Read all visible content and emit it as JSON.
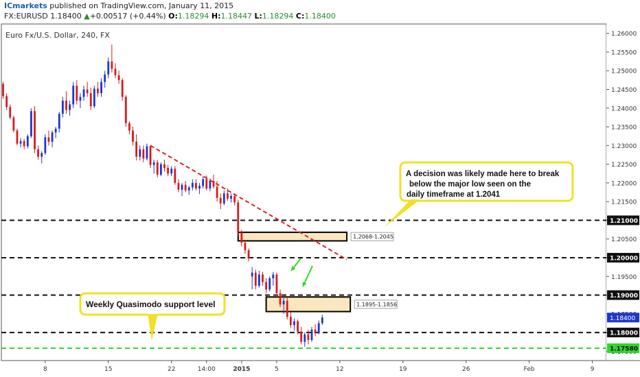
{
  "header": {
    "publisher": "ICmarkets",
    "published_text": "published on TradingView.com, January 11, 2015",
    "symbol": "FX:EURUSD",
    "last": "1.18400",
    "change": "+0.00517 (+0.44%)",
    "open_label": "O:",
    "open": "1.18294",
    "high_label": "H:",
    "high": "1.18447",
    "low_label": "L:",
    "low": "1.18294",
    "close_label": "C:",
    "close": "1.18400",
    "up_arrow": "▲"
  },
  "chart_title": "Euro Fx/U.S. Dollar, 240, FX",
  "chart_data": {
    "type": "candlestick",
    "title": "Euro Fx/U.S. Dollar, 240, FX",
    "y_axis_ticks": [
      "1.26000",
      "1.25500",
      "1.25000",
      "1.24500",
      "1.24000",
      "1.23500",
      "1.23000",
      "1.22500",
      "1.22000",
      "1.21500",
      "1.21000",
      "1.20500",
      "1.20000",
      "1.19500",
      "1.19000",
      "1.18500",
      "1.18000",
      "1.17500"
    ],
    "ylim": [
      1.1725,
      1.2625
    ],
    "x_axis_ticks": [
      {
        "label": "8",
        "idx": 12
      },
      {
        "label": "15",
        "idx": 30
      },
      {
        "label": "22",
        "idx": 48
      },
      {
        "label": "14:00",
        "idx": 58
      },
      {
        "label": "2015",
        "idx": 68
      },
      {
        "label": "5",
        "idx": 78
      },
      {
        "label": "12",
        "idx": 96
      },
      {
        "label": "19",
        "idx": 114
      },
      {
        "label": "26",
        "idx": 132
      },
      {
        "label": "Feb",
        "idx": 150
      },
      {
        "label": "9",
        "idx": 168
      }
    ],
    "x_index_range": [
      -0.5,
      172
    ],
    "candles": [
      [
        1.2465,
        1.247,
        1.2425,
        1.2432
      ],
      [
        1.2432,
        1.244,
        1.2395,
        1.2403
      ],
      [
        1.2403,
        1.241,
        1.237,
        1.2375
      ],
      [
        1.2375,
        1.238,
        1.2335,
        1.234
      ],
      [
        1.234,
        1.2345,
        1.23,
        1.2305
      ],
      [
        1.2305,
        1.232,
        1.2295,
        1.2312
      ],
      [
        1.2312,
        1.2318,
        1.229,
        1.2298
      ],
      [
        1.2298,
        1.233,
        1.2292,
        1.2325
      ],
      [
        1.2325,
        1.24,
        1.232,
        1.2392
      ],
      [
        1.2392,
        1.2405,
        1.228,
        1.229
      ],
      [
        1.229,
        1.23,
        1.2262,
        1.227
      ],
      [
        1.227,
        1.2285,
        1.2252,
        1.228
      ],
      [
        1.228,
        1.233,
        1.2275,
        1.2322
      ],
      [
        1.2322,
        1.234,
        1.23,
        1.231
      ],
      [
        1.231,
        1.234,
        1.2295,
        1.2335
      ],
      [
        1.2335,
        1.235,
        1.232,
        1.2345
      ],
      [
        1.2345,
        1.239,
        1.2335,
        1.2385
      ],
      [
        1.2385,
        1.243,
        1.2375,
        1.242
      ],
      [
        1.242,
        1.2445,
        1.2385,
        1.2395
      ],
      [
        1.2395,
        1.242,
        1.238,
        1.241
      ],
      [
        1.241,
        1.247,
        1.24,
        1.246
      ],
      [
        1.246,
        1.2475,
        1.241,
        1.242
      ],
      [
        1.242,
        1.244,
        1.24,
        1.243
      ],
      [
        1.243,
        1.246,
        1.242,
        1.245
      ],
      [
        1.245,
        1.247,
        1.243,
        1.244
      ],
      [
        1.244,
        1.2455,
        1.2395,
        1.2405
      ],
      [
        1.2405,
        1.246,
        1.24,
        1.2452
      ],
      [
        1.2452,
        1.247,
        1.243,
        1.244
      ],
      [
        1.244,
        1.248,
        1.243,
        1.247
      ],
      [
        1.247,
        1.25,
        1.2455,
        1.249
      ],
      [
        1.249,
        1.2535,
        1.248,
        1.2525
      ],
      [
        1.2525,
        1.257,
        1.2495,
        1.2505
      ],
      [
        1.2505,
        1.252,
        1.248,
        1.2488
      ],
      [
        1.2488,
        1.25,
        1.2465,
        1.2475
      ],
      [
        1.2475,
        1.248,
        1.242,
        1.243
      ],
      [
        1.243,
        1.2435,
        1.235,
        1.236
      ],
      [
        1.236,
        1.2365,
        1.233,
        1.234
      ],
      [
        1.234,
        1.235,
        1.23,
        1.231
      ],
      [
        1.231,
        1.233,
        1.226,
        1.227
      ],
      [
        1.227,
        1.23,
        1.226,
        1.229
      ],
      [
        1.229,
        1.23,
        1.2255,
        1.2265
      ],
      [
        1.2265,
        1.2305,
        1.226,
        1.2298
      ],
      [
        1.2298,
        1.23,
        1.224,
        1.2248
      ],
      [
        1.2248,
        1.2262,
        1.2225,
        1.2255
      ],
      [
        1.2255,
        1.2262,
        1.2215,
        1.2222
      ],
      [
        1.2222,
        1.2255,
        1.2218,
        1.225
      ],
      [
        1.225,
        1.2262,
        1.223,
        1.224
      ],
      [
        1.224,
        1.2248,
        1.2218,
        1.2225
      ],
      [
        1.2225,
        1.2245,
        1.2218,
        1.2238
      ],
      [
        1.2238,
        1.2245,
        1.2195,
        1.22
      ],
      [
        1.22,
        1.221,
        1.2175,
        1.2182
      ],
      [
        1.2182,
        1.22,
        1.2165,
        1.2195
      ],
      [
        1.2195,
        1.2205,
        1.2175,
        1.218
      ],
      [
        1.218,
        1.2192,
        1.2168,
        1.2188
      ],
      [
        1.2188,
        1.221,
        1.218,
        1.22
      ],
      [
        1.22,
        1.221,
        1.218,
        1.2185
      ],
      [
        1.2185,
        1.22,
        1.217,
        1.2192
      ],
      [
        1.2192,
        1.2218,
        1.2185,
        1.221
      ],
      [
        1.221,
        1.222,
        1.218,
        1.2185
      ],
      [
        1.2185,
        1.2212,
        1.2178,
        1.2205
      ],
      [
        1.2205,
        1.2222,
        1.2185,
        1.219
      ],
      [
        1.219,
        1.2205,
        1.215,
        1.216
      ],
      [
        1.216,
        1.2172,
        1.213,
        1.2145
      ],
      [
        1.2145,
        1.218,
        1.214,
        1.2172
      ],
      [
        1.2172,
        1.2185,
        1.2152,
        1.2158
      ],
      [
        1.2158,
        1.2172,
        1.2148,
        1.2165
      ],
      [
        1.2165,
        1.2172,
        1.214,
        1.2148
      ],
      [
        1.2148,
        1.2155,
        1.206,
        1.2068
      ],
      [
        1.2068,
        1.2075,
        1.203,
        1.204
      ],
      [
        1.204,
        1.2048,
        1.201,
        1.202
      ],
      [
        1.202,
        1.2025,
        1.199,
        1.1998
      ],
      [
        1.195,
        1.1975,
        1.1915,
        1.196
      ],
      [
        1.196,
        1.1968,
        1.1915,
        1.1925
      ],
      [
        1.1925,
        1.1965,
        1.192,
        1.1955
      ],
      [
        1.1955,
        1.1962,
        1.1925,
        1.1935
      ],
      [
        1.1935,
        1.1945,
        1.1905,
        1.1915
      ],
      [
        1.1915,
        1.195,
        1.191,
        1.1945
      ],
      [
        1.1945,
        1.1962,
        1.1925,
        1.1955
      ],
      [
        1.1955,
        1.196,
        1.1895,
        1.1905
      ],
      [
        1.1905,
        1.1915,
        1.1868,
        1.1875
      ],
      [
        1.1875,
        1.1892,
        1.185,
        1.1885
      ],
      [
        1.1885,
        1.1895,
        1.1835,
        1.1842
      ],
      [
        1.1842,
        1.1855,
        1.1812,
        1.182
      ],
      [
        1.182,
        1.1838,
        1.1805,
        1.183
      ],
      [
        1.183,
        1.1835,
        1.1795,
        1.1802
      ],
      [
        1.1802,
        1.1815,
        1.1768,
        1.1775
      ],
      [
        1.1775,
        1.18,
        1.1762,
        1.1795
      ],
      [
        1.1795,
        1.1808,
        1.1768,
        1.178
      ],
      [
        1.178,
        1.1815,
        1.1775,
        1.1808
      ],
      [
        1.1808,
        1.1822,
        1.179,
        1.1798
      ],
      [
        1.1798,
        1.1832,
        1.1795,
        1.1825
      ],
      [
        1.1825,
        1.1848,
        1.182,
        1.184
      ]
    ]
  },
  "levels": [
    {
      "price": 1.21,
      "label": "1.21000",
      "style": "black"
    },
    {
      "price": 1.2,
      "label": "1.20000",
      "style": "black"
    },
    {
      "price": 1.19,
      "label": "1.19000",
      "style": "black"
    },
    {
      "price": 1.18,
      "label": "1.18000",
      "style": "black"
    },
    {
      "price": 1.1758,
      "label": "1.17580",
      "style": "green"
    }
  ],
  "current_price_label": "1.18400",
  "zones": [
    {
      "label": "1.2068-1.2045",
      "x0": 67,
      "x1": 98,
      "top": 1.2068,
      "bottom": 1.2045
    },
    {
      "label": "1.1895-1.1856",
      "x0": 75,
      "x1": 99,
      "top": 1.1895,
      "bottom": 1.1856
    }
  ],
  "trendline": {
    "x0": 42,
    "y0": 1.23,
    "x1": 98,
    "y1": 1.1995
  },
  "callouts": {
    "top": {
      "lines": [
        "A decision was likely made here to break",
        "below the major low seen on the",
        "daily timeframe at 1.2041"
      ]
    },
    "bottom": {
      "text": "Weekly Quasimodo support level"
    }
  },
  "colors": {
    "bull": "#1f36c8",
    "bear": "#d21d1d",
    "callout_border": "#f2e028",
    "zone_fill": "#fbe7bf",
    "green": "#2fd62f",
    "trendline": "#e02020",
    "price_label": "#1f36c8"
  }
}
